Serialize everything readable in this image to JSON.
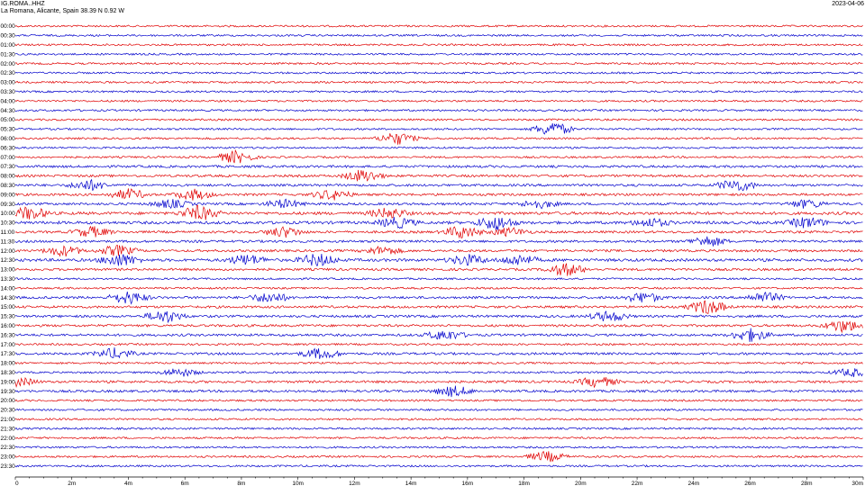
{
  "header": {
    "station": "IG.ROMA..HHZ",
    "location": "La Romana, Alicante, Spain  38.39 N 0.92 W",
    "date": "2023-04-06"
  },
  "chart_data": {
    "type": "line",
    "title": "",
    "xlabel": "",
    "ylabel": "",
    "x_unit": "minutes",
    "xlim": [
      0,
      30
    ],
    "x_ticks": [
      "0",
      "2m",
      "4m",
      "6m",
      "8m",
      "10m",
      "12m",
      "14m",
      "16m",
      "18m",
      "20m",
      "22m",
      "24m",
      "26m",
      "28m",
      "30m"
    ],
    "row_labels": [
      "00:00",
      "00:30",
      "01:00",
      "01:30",
      "02:00",
      "02:30",
      "03:00",
      "03:30",
      "04:00",
      "04:30",
      "05:00",
      "05:30",
      "06:00",
      "06:30",
      "07:00",
      "07:30",
      "08:00",
      "08:30",
      "09:00",
      "09:30",
      "10:00",
      "10:30",
      "11:00",
      "11:30",
      "12:00",
      "12:30",
      "13:00",
      "13:30",
      "14:00",
      "14:30",
      "15:00",
      "15:30",
      "16:00",
      "16:30",
      "17:00",
      "17:30",
      "18:00",
      "18:30",
      "19:00",
      "19:30",
      "20:00",
      "20:30",
      "21:00",
      "21:30",
      "22:00",
      "22:30",
      "23:00",
      "23:30"
    ],
    "colors": [
      "#e00000",
      "#0000cc"
    ],
    "grid": false,
    "legend": "none",
    "series": [
      {
        "values": [
          0.4
        ]
      },
      {
        "values": [
          0.4
        ]
      },
      {
        "values": [
          0.4
        ]
      },
      {
        "values": [
          0.4
        ]
      },
      {
        "values": [
          0.4
        ]
      },
      {
        "values": [
          0.4
        ]
      },
      {
        "values": [
          0.4
        ]
      },
      {
        "values": [
          0.4
        ]
      },
      {
        "values": [
          0.4
        ]
      },
      {
        "values": [
          0.4
        ]
      },
      {
        "values": [
          0.4
        ]
      },
      {
        "values": [
          0.4
        ],
        "bursts": [
          [
            19.0,
            3.5
          ]
        ]
      },
      {
        "values": [
          0.4
        ],
        "bursts": [
          [
            13.5,
            3.0
          ]
        ]
      },
      {
        "values": [
          0.4
        ]
      },
      {
        "values": [
          0.4
        ],
        "bursts": [
          [
            7.8,
            3.0
          ]
        ]
      },
      {
        "values": [
          0.5
        ]
      },
      {
        "values": [
          0.5
        ],
        "bursts": [
          [
            12.3,
            3.0
          ]
        ]
      },
      {
        "values": [
          0.5
        ],
        "bursts": [
          [
            2.6,
            2.5
          ],
          [
            25.5,
            3.0
          ]
        ]
      },
      {
        "values": [
          0.5
        ],
        "bursts": [
          [
            4.0,
            2.5
          ],
          [
            6.3,
            2.5
          ],
          [
            11.2,
            2.5
          ]
        ]
      },
      {
        "values": [
          0.5
        ],
        "bursts": [
          [
            5.5,
            2.0
          ],
          [
            9.5,
            2.0
          ],
          [
            18.5,
            2.0
          ],
          [
            28.0,
            2.0
          ]
        ]
      },
      {
        "values": [
          0.6
        ],
        "bursts": [
          [
            0.5,
            3.0
          ],
          [
            13.2,
            2.5
          ],
          [
            6.5,
            3.5
          ]
        ]
      },
      {
        "values": [
          0.6
        ],
        "bursts": [
          [
            13.5,
            2.5
          ],
          [
            17.0,
            3.5
          ],
          [
            22.5,
            2.0
          ],
          [
            28.0,
            2.5
          ]
        ]
      },
      {
        "values": [
          0.5
        ],
        "bursts": [
          [
            2.7,
            2.5
          ],
          [
            9.5,
            2.5
          ],
          [
            15.8,
            3.0
          ],
          [
            17.5,
            2.0
          ]
        ]
      },
      {
        "values": [
          0.5
        ],
        "bursts": [
          [
            24.5,
            2.5
          ]
        ]
      },
      {
        "values": [
          0.5
        ],
        "bursts": [
          [
            1.7,
            2.5
          ],
          [
            3.6,
            2.5
          ],
          [
            13.0,
            2.0
          ]
        ]
      },
      {
        "values": [
          0.6
        ],
        "bursts": [
          [
            3.7,
            3.0
          ],
          [
            8.2,
            2.5
          ],
          [
            10.7,
            3.0
          ],
          [
            16.0,
            2.5
          ],
          [
            17.8,
            2.5
          ]
        ]
      },
      {
        "values": [
          0.5
        ],
        "bursts": [
          [
            19.5,
            3.0
          ]
        ]
      },
      {
        "values": [
          0.4
        ]
      },
      {
        "values": [
          0.4
        ]
      },
      {
        "values": [
          0.5
        ],
        "bursts": [
          [
            4.0,
            3.0
          ],
          [
            9.0,
            2.5
          ],
          [
            22.2,
            2.5
          ],
          [
            26.5,
            2.5
          ]
        ]
      },
      {
        "values": [
          0.5
        ],
        "bursts": [
          [
            24.5,
            3.5
          ]
        ]
      },
      {
        "values": [
          0.5
        ],
        "bursts": [
          [
            5.3,
            3.0
          ],
          [
            21.0,
            2.5
          ]
        ]
      },
      {
        "values": [
          0.5
        ],
        "bursts": [
          [
            29.3,
            3.0
          ]
        ]
      },
      {
        "values": [
          0.5
        ],
        "bursts": [
          [
            15.2,
            2.5
          ],
          [
            26.0,
            3.0
          ]
        ]
      },
      {
        "values": [
          0.4
        ]
      },
      {
        "values": [
          0.5
        ],
        "bursts": [
          [
            3.5,
            2.5
          ],
          [
            10.8,
            2.5
          ]
        ]
      },
      {
        "values": [
          0.4
        ]
      },
      {
        "values": [
          0.4
        ],
        "bursts": [
          [
            5.8,
            2.0
          ],
          [
            29.6,
            2.0
          ]
        ]
      },
      {
        "values": [
          0.5
        ],
        "bursts": [
          [
            0.1,
            2.0
          ],
          [
            20.6,
            2.5
          ]
        ]
      },
      {
        "values": [
          0.5
        ],
        "bursts": [
          [
            15.5,
            2.5
          ]
        ]
      },
      {
        "values": [
          0.4
        ]
      },
      {
        "values": [
          0.4
        ]
      },
      {
        "values": [
          0.4
        ]
      },
      {
        "values": [
          0.4
        ]
      },
      {
        "values": [
          0.4
        ]
      },
      {
        "values": [
          0.4
        ]
      },
      {
        "values": [
          0.4
        ],
        "bursts": [
          [
            18.8,
            2.5
          ]
        ]
      },
      {
        "values": [
          0.4
        ]
      }
    ]
  }
}
